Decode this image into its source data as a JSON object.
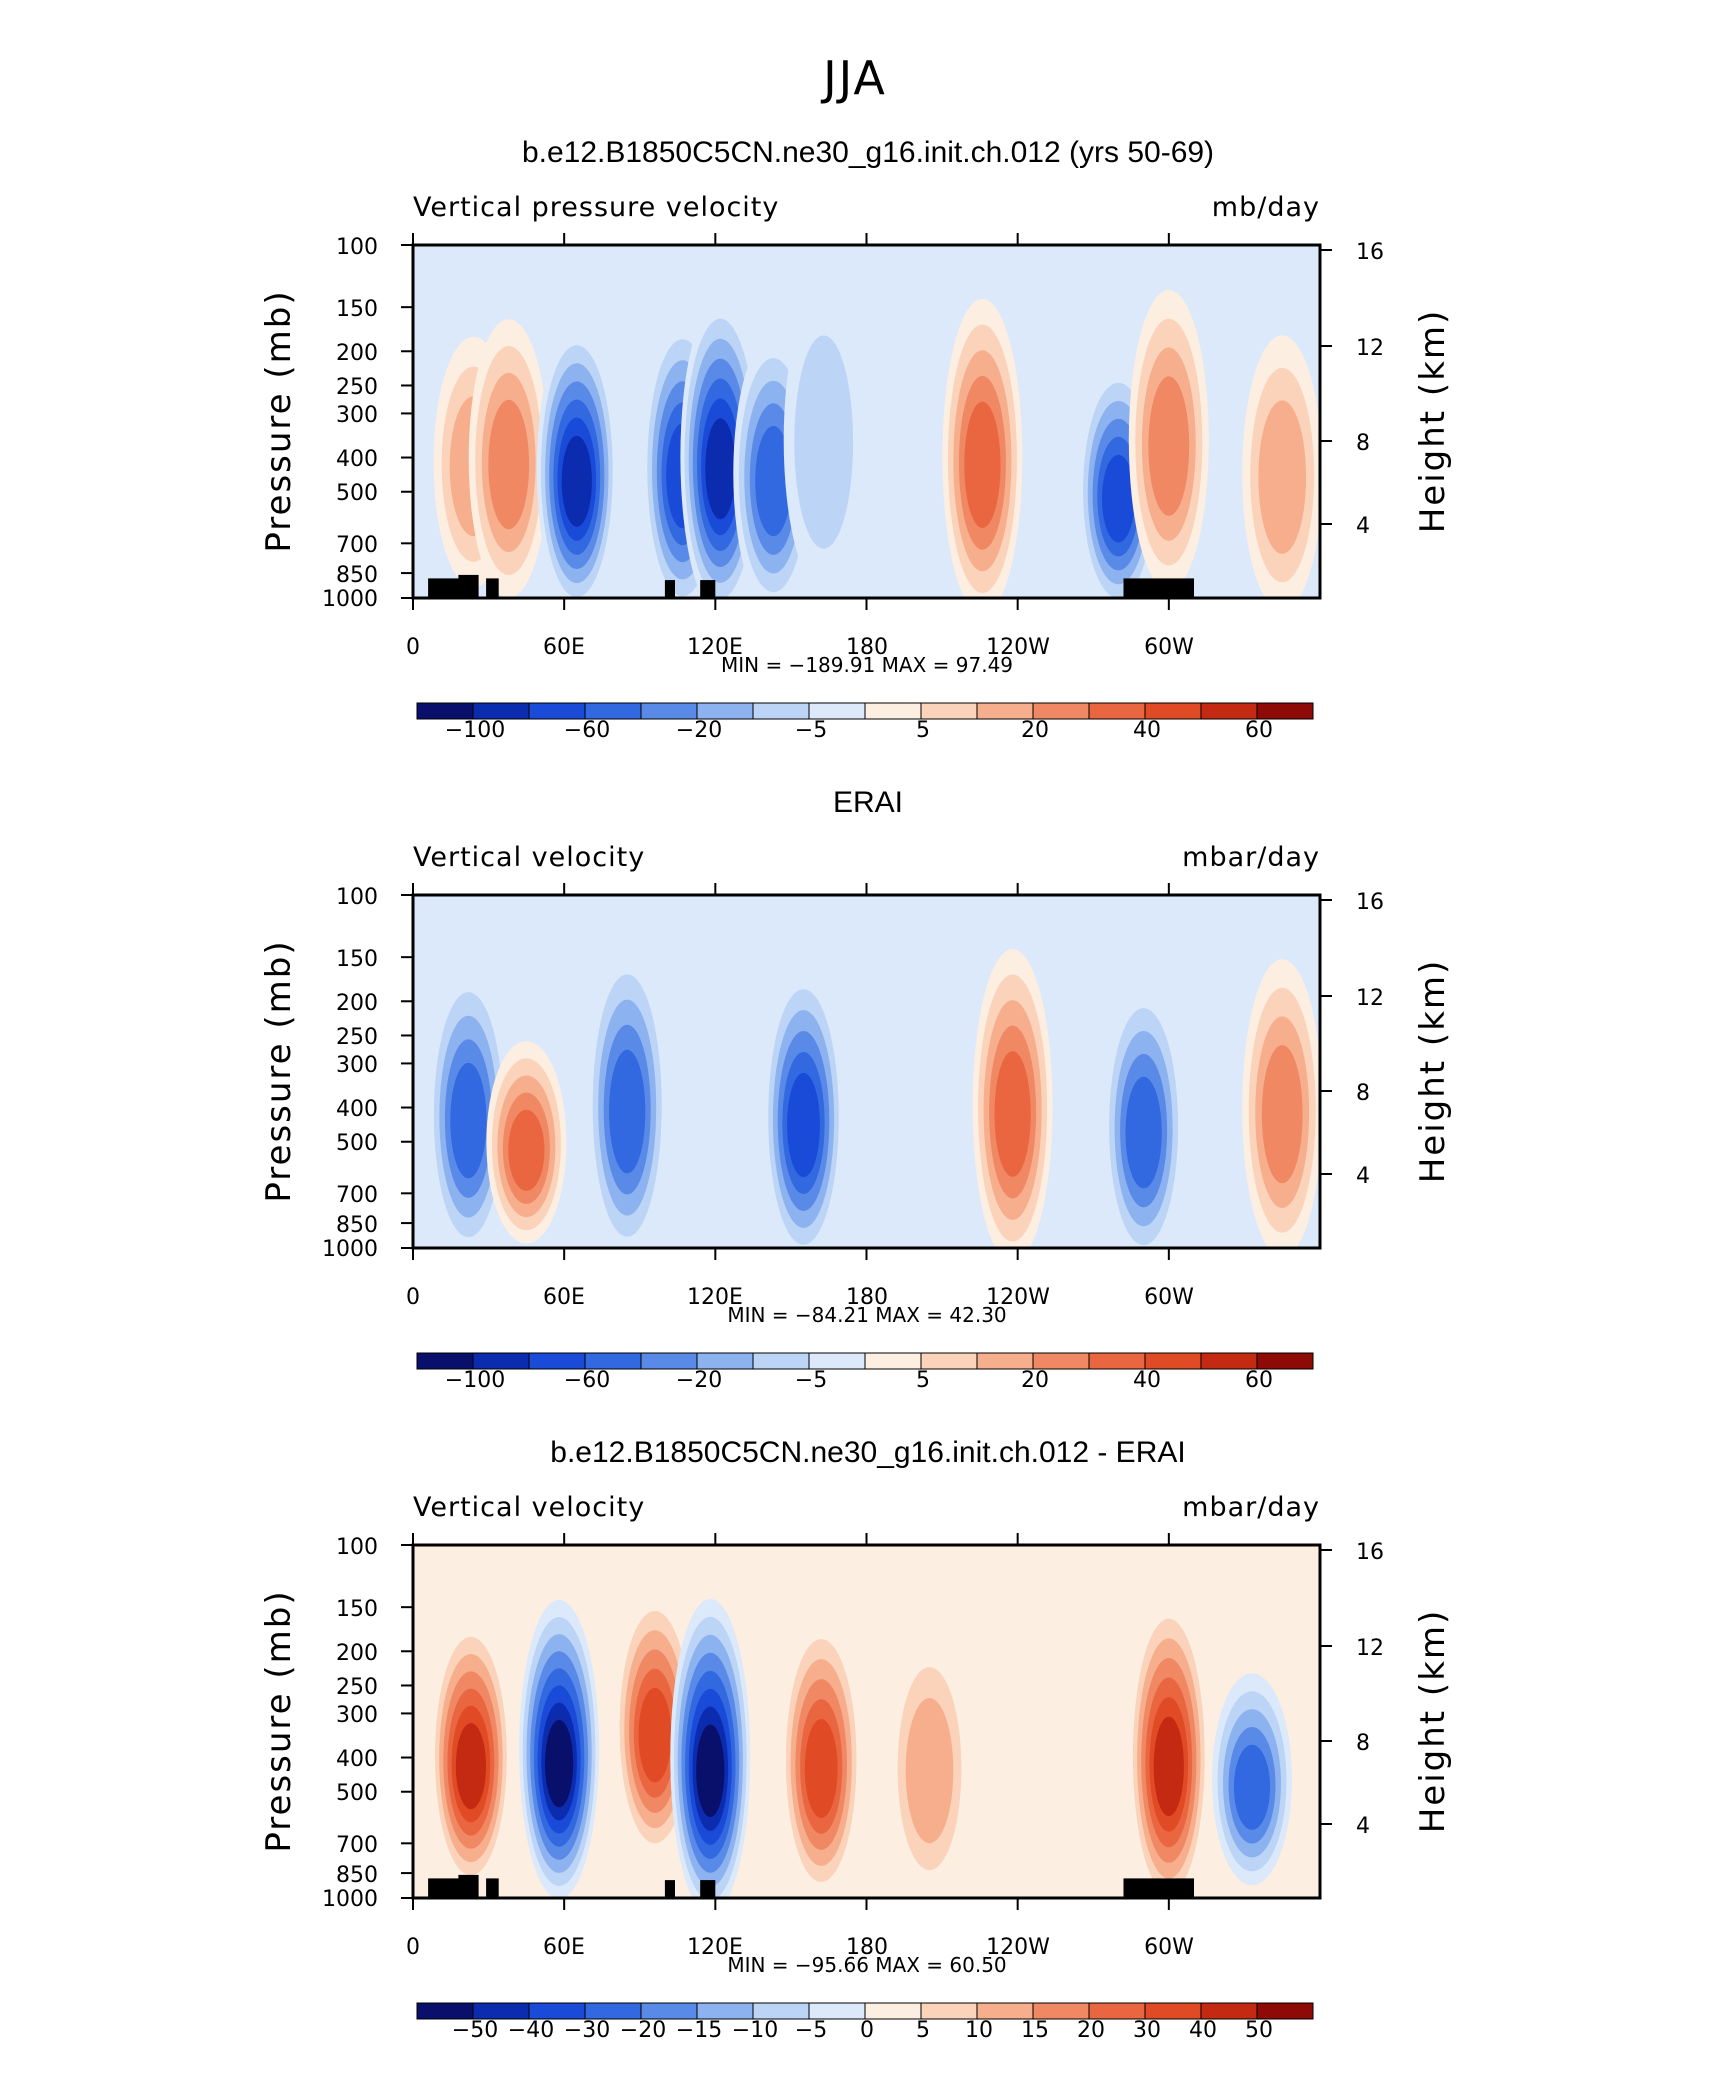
{
  "figure_title": "JJA",
  "palette_colors": [
    "#08106b",
    "#0c2cb0",
    "#1a4ad8",
    "#3268e0",
    "#5a8ae8",
    "#8db2f0",
    "#bcd4f6",
    "#dce9fb",
    "#fdeee2",
    "#fbd2ba",
    "#f6ae8c",
    "#f08864",
    "#ea6640",
    "#e04a24",
    "#c42a12",
    "#8e0a06"
  ],
  "chart_data": [
    {
      "type": "heatmap",
      "title": "b.e12.B1850C5CN.ne30_g16.init.ch.012 (yrs 50-69)",
      "left_label": "Vertical pressure velocity",
      "right_label": "mb/day",
      "ylabel": "Pressure (mb)",
      "y2label": "Height (km)",
      "x_ticks": [
        "0",
        "60E",
        "120E",
        "180",
        "120W",
        "60W"
      ],
      "y_ticks": [
        "100",
        "150",
        "200",
        "250",
        "300",
        "400",
        "500",
        "700",
        "850",
        "1000"
      ],
      "y2_ticks": [
        "16",
        "12",
        "8",
        "4"
      ],
      "stats": "MIN = −189.91   MAX =   97.49",
      "colorbar_labels": [
        "−100",
        "−60",
        "−20",
        "−5",
        "5",
        "20",
        "40",
        "60"
      ],
      "colorbar_levels": 16,
      "terrain": true,
      "features": [
        {
          "lon": 24,
          "p_top": 200,
          "p_bot": 850,
          "level": 10
        },
        {
          "lon": 38,
          "p_top": 180,
          "p_bot": 900,
          "level": 11
        },
        {
          "lon": 65,
          "p_top": 190,
          "p_bot": 980,
          "level": 1
        },
        {
          "lon": 107,
          "p_top": 180,
          "p_bot": 990,
          "level": 2
        },
        {
          "lon": 122,
          "p_top": 160,
          "p_bot": 990,
          "level": 1
        },
        {
          "lon": 143,
          "p_top": 200,
          "p_bot": 980,
          "level": 3
        },
        {
          "lon": 163,
          "p_top": 150,
          "p_bot": 850,
          "level": 6
        },
        {
          "lon": 226,
          "p_top": 160,
          "p_bot": 990,
          "level": 12
        },
        {
          "lon": 280,
          "p_top": 240,
          "p_bot": 1000,
          "level": 2
        },
        {
          "lon": 300,
          "p_top": 150,
          "p_bot": 850,
          "level": 11
        },
        {
          "lon": 345,
          "p_top": 200,
          "p_bot": 980,
          "level": 10
        }
      ]
    },
    {
      "type": "heatmap",
      "title": "ERAI",
      "left_label": "Vertical velocity",
      "right_label": "mbar/day",
      "ylabel": "Pressure (mb)",
      "y2label": "Height (km)",
      "x_ticks": [
        "0",
        "60E",
        "120E",
        "180",
        "120W",
        "60W"
      ],
      "y_ticks": [
        "100",
        "150",
        "200",
        "250",
        "300",
        "400",
        "500",
        "700",
        "850",
        "1000"
      ],
      "y2_ticks": [
        "16",
        "12",
        "8",
        "4"
      ],
      "stats": "MIN = −84.21   MAX =   42.30",
      "colorbar_labels": [
        "−100",
        "−60",
        "−20",
        "−5",
        "5",
        "20",
        "40",
        "60"
      ],
      "colorbar_levels": 16,
      "terrain": false,
      "features": [
        {
          "lon": 22,
          "p_top": 180,
          "p_bot": 950,
          "level": 3
        },
        {
          "lon": 45,
          "p_top": 280,
          "p_bot": 900,
          "level": 12
        },
        {
          "lon": 85,
          "p_top": 160,
          "p_bot": 950,
          "level": 3
        },
        {
          "lon": 155,
          "p_top": 180,
          "p_bot": 980,
          "level": 2
        },
        {
          "lon": 238,
          "p_top": 160,
          "p_bot": 980,
          "level": 12
        },
        {
          "lon": 290,
          "p_top": 200,
          "p_bot": 1000,
          "level": 3
        },
        {
          "lon": 345,
          "p_top": 170,
          "p_bot": 950,
          "level": 11
        }
      ]
    },
    {
      "type": "heatmap",
      "title": "b.e12.B1850C5CN.ne30_g16.init.ch.012 - ERAI",
      "left_label": "Vertical velocity",
      "right_label": "mbar/day",
      "ylabel": "Pressure (mb)",
      "y2label": "Height (km)",
      "x_ticks": [
        "0",
        "60E",
        "120E",
        "180",
        "120W",
        "60W"
      ],
      "y_ticks": [
        "100",
        "150",
        "200",
        "250",
        "300",
        "400",
        "500",
        "700",
        "850",
        "1000"
      ],
      "y2_ticks": [
        "16",
        "12",
        "8",
        "4"
      ],
      "stats": "MIN = −95.66   MAX =   60.50",
      "colorbar_labels": [
        "−50",
        "−40",
        "−30",
        "−20",
        "−15",
        "−10",
        "−5",
        "0",
        "5",
        "10",
        "15",
        "20",
        "30",
        "40",
        "50"
      ],
      "colorbar_levels": 16,
      "terrain": true,
      "features": [
        {
          "lon": 23,
          "p_top": 180,
          "p_bot": 850,
          "level": 14
        },
        {
          "lon": 58,
          "p_top": 160,
          "p_bot": 900,
          "level": 0
        },
        {
          "lon": 96,
          "p_top": 150,
          "p_bot": 700,
          "level": 13
        },
        {
          "lon": 118,
          "p_top": 160,
          "p_bot": 990,
          "level": 0
        },
        {
          "lon": 162,
          "p_top": 180,
          "p_bot": 900,
          "level": 13
        },
        {
          "lon": 205,
          "p_top": 200,
          "p_bot": 900,
          "level": 10
        },
        {
          "lon": 300,
          "p_top": 160,
          "p_bot": 960,
          "level": 14
        },
        {
          "lon": 333,
          "p_top": 250,
          "p_bot": 850,
          "level": 3
        }
      ]
    }
  ]
}
